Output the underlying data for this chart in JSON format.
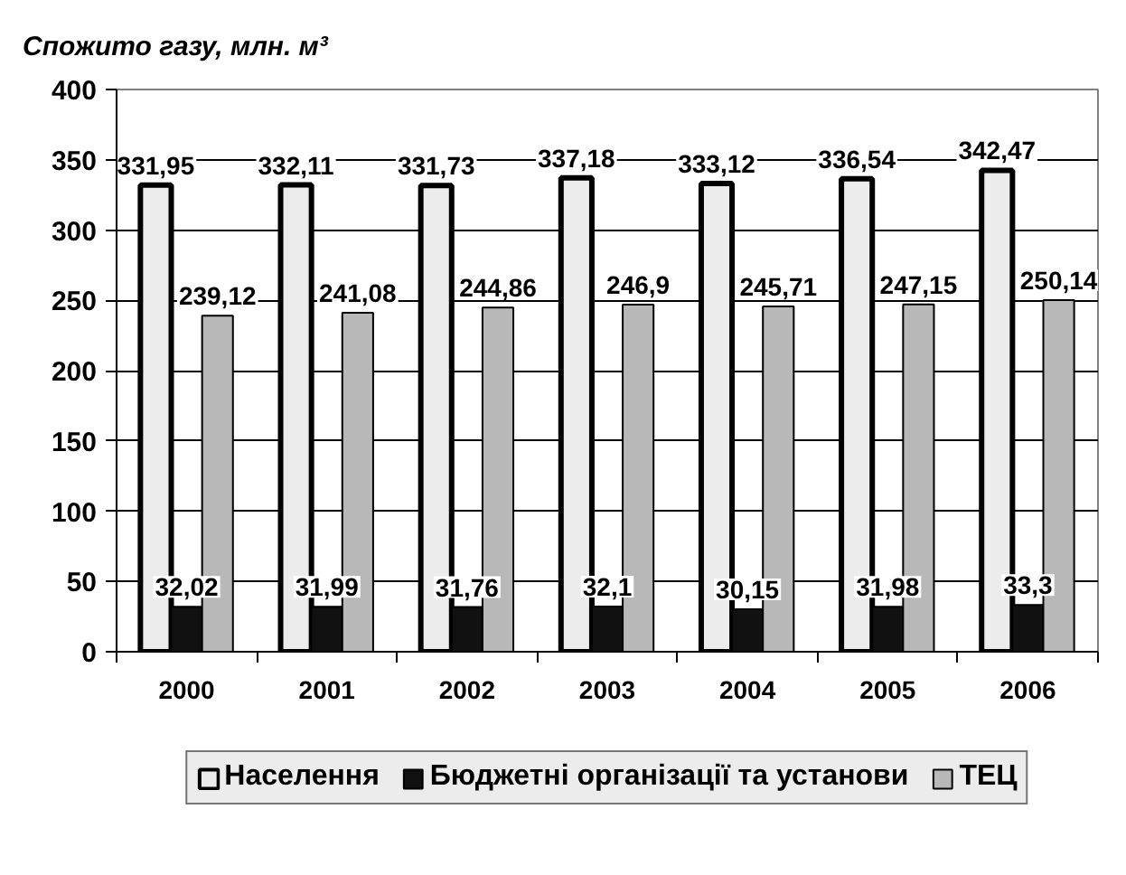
{
  "chart_data": {
    "type": "bar",
    "title": "Спожито газу, млн. м³",
    "categories": [
      "2000",
      "2001",
      "2002",
      "2003",
      "2004",
      "2005",
      "2006"
    ],
    "series": [
      {
        "name": "Населення",
        "color": "#ececec",
        "values": [
          331.95,
          332.11,
          331.73,
          337.18,
          333.12,
          336.54,
          342.47
        ],
        "value_labels": [
          "331,95",
          "332,11",
          "331,73",
          "337,18",
          "333,12",
          "336,54",
          "342,47"
        ]
      },
      {
        "name": "Бюджетні організації та установи",
        "color": "#111111",
        "values": [
          32.02,
          31.99,
          31.76,
          32.1,
          30.15,
          31.98,
          33.3
        ],
        "value_labels": [
          "32,02",
          "31,99",
          "31,76",
          "32,1",
          "30,15",
          "31,98",
          "33,3"
        ]
      },
      {
        "name": "ТЕЦ",
        "color": "#b8b8b8",
        "values": [
          239.12,
          241.08,
          244.86,
          246.9,
          245.71,
          247.15,
          250.14
        ],
        "value_labels": [
          "239,12",
          "241,08",
          "244,86",
          "246,9",
          "245,71",
          "247,15",
          "250,14"
        ]
      }
    ],
    "ylim": [
      0,
      400
    ],
    "yticks": [
      0,
      50,
      100,
      150,
      200,
      250,
      300,
      350,
      400
    ],
    "grid": "y",
    "legend": "bottom"
  }
}
